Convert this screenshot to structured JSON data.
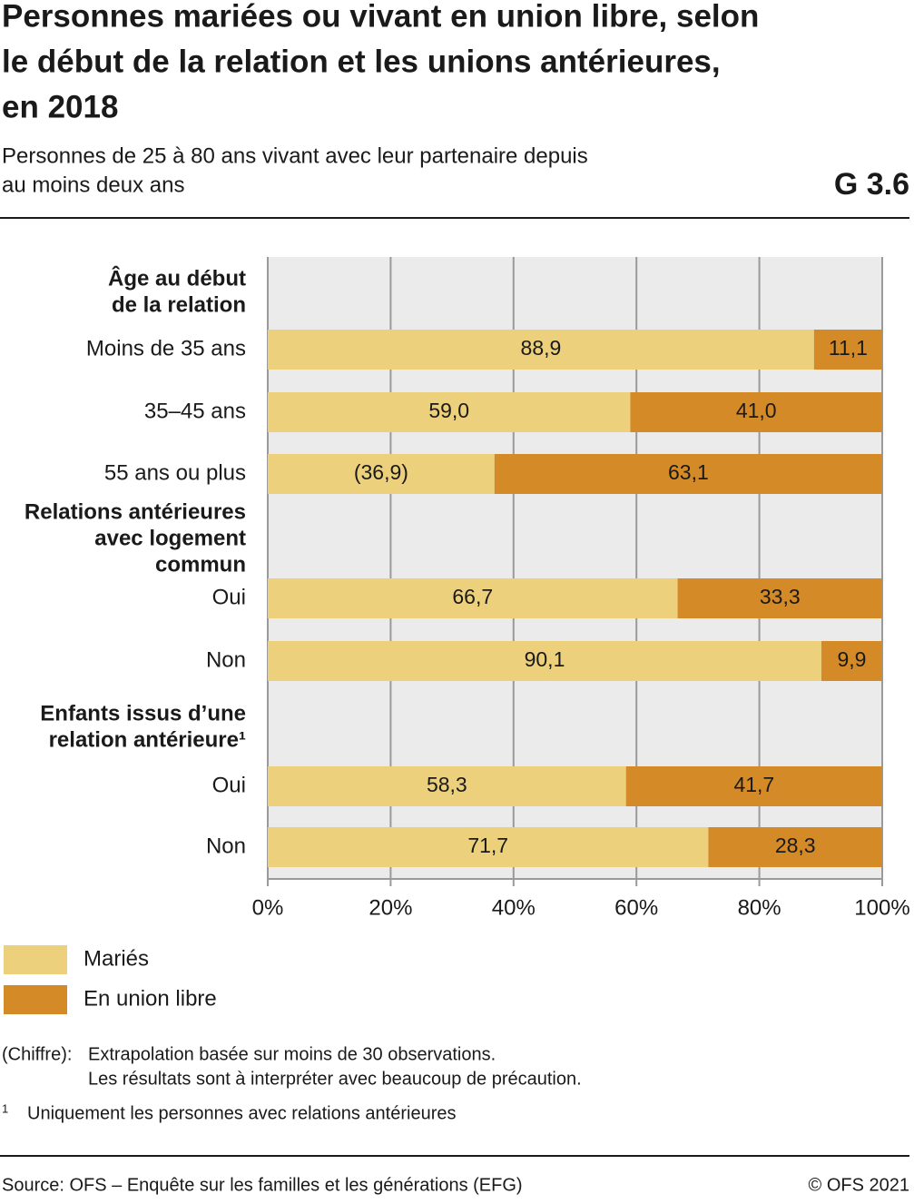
{
  "header": {
    "title": [
      "Personnes mariées ou vivant en union libre, selon",
      "le début de la relation et les unions antérieures,",
      "en 2018"
    ],
    "subtitle": [
      "Personnes de 25 à 80 ans vivant avec leur partenaire depuis",
      "au moins deux ans"
    ],
    "code": "G 3.6"
  },
  "chart_data": {
    "type": "stacked-bar-horizontal",
    "groups": [
      {
        "label": [
          "Âge au début",
          "de la relation"
        ],
        "categories": [
          "Moins de 35 ans",
          "35–45 ans",
          "55 ans ou plus"
        ]
      },
      {
        "label": [
          "Relations antérieures",
          "avec logement",
          "commun"
        ],
        "categories": [
          "Oui",
          "Non"
        ]
      },
      {
        "label": [
          "Enfants issus d’une",
          "relation antérieure¹"
        ],
        "categories": [
          "Oui",
          "Non"
        ]
      }
    ],
    "series": [
      {
        "name": "Mariés",
        "color": "#edd07c",
        "values": [
          88.9,
          59.0,
          36.9,
          66.7,
          90.1,
          58.3,
          71.7
        ],
        "value_labels": [
          "88,9",
          "59,0",
          "(36,9)",
          "66,7",
          "90,1",
          "58,3",
          "71,7"
        ]
      },
      {
        "name": "En union libre",
        "color": "#d48b27",
        "values": [
          11.1,
          41.0,
          63.1,
          33.3,
          9.9,
          41.7,
          28.3
        ],
        "value_labels": [
          "11,1",
          "41,0",
          "63,1",
          "33,3",
          "9,9",
          "41,7",
          "28,3"
        ]
      }
    ],
    "xlim": [
      0,
      100
    ],
    "xticks": [
      {
        "value": 0,
        "label": "0%"
      },
      {
        "value": 20,
        "label": "20%"
      },
      {
        "value": 40,
        "label": "40%"
      },
      {
        "value": 60,
        "label": "60%"
      },
      {
        "value": 80,
        "label": "80%"
      },
      {
        "value": 100,
        "label": "100%"
      }
    ],
    "grid": true
  },
  "notes": {
    "key": "(Chiffre):",
    "lines": [
      "Extrapolation basée sur moins de 30 observations.",
      "Les résultats sont à interpréter avec beaucoup de précaution."
    ]
  },
  "footnote": {
    "key": "1",
    "text": "Uniquement les personnes avec relations antérieures"
  },
  "footer": {
    "source": "Source: OFS – Enquête sur les familles et les générations (EFG)",
    "copyright": "© OFS 2021"
  }
}
